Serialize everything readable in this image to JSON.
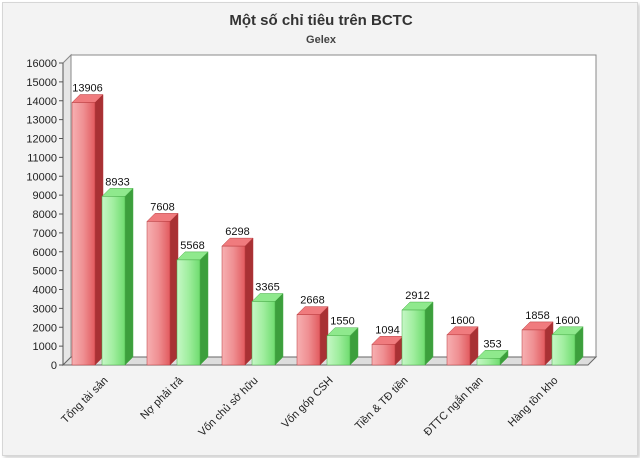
{
  "colors": {
    "series_red": "#e04f52",
    "series_green": "#5ed15e"
  },
  "chart_data": {
    "type": "bar",
    "title": "Một số chỉ tiêu trên BCTC",
    "subtitle": "Gelex",
    "categories": [
      "Tổng tài sản",
      "Nợ phải trả",
      "Vốn chủ sở hữu",
      "Vốn góp CSH",
      "Tiền & TĐ tiền",
      "ĐTTC ngắn hạn",
      "Hàng tồn kho"
    ],
    "series": [
      {
        "values": [
          13906,
          7608,
          6298,
          2668,
          1094,
          1600,
          1858
        ]
      },
      {
        "values": [
          8933,
          5568,
          3365,
          1550,
          2912,
          353,
          1600
        ]
      }
    ],
    "ylim": [
      0,
      16000
    ],
    "yticks": [
      0,
      1000,
      2000,
      3000,
      4000,
      5000,
      6000,
      7000,
      8000,
      9000,
      10000,
      11000,
      12000,
      13000,
      14000,
      15000,
      16000
    ],
    "grid": false,
    "legend": "none",
    "style": "3d"
  }
}
